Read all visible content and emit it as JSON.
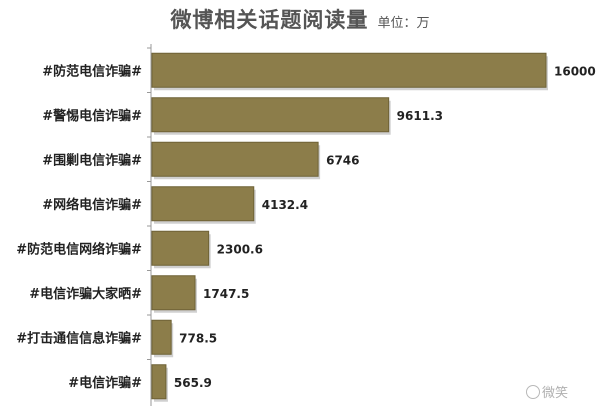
{
  "chart_data": {
    "type": "bar",
    "orientation": "horizontal",
    "title": "微博相关话题阅读量",
    "unit_label": "单位：万",
    "categories": [
      "#防范电信诈骗#",
      "#警惕电信诈骗#",
      "#围剿电信诈骗#",
      "#网络电信诈骗#",
      "#防范电信网络诈骗#",
      "#电信诈骗大家晒#",
      "#打击通信信息诈骗#",
      "#电信诈骗#"
    ],
    "values": [
      16000,
      9611.3,
      6746,
      4132.4,
      2300.6,
      1747.5,
      778.5,
      565.9
    ],
    "value_labels": [
      "16000",
      "9611.3",
      "6746",
      "4132.4",
      "2300.6",
      "1747.5",
      "778.5",
      "565.9"
    ],
    "xlim": [
      0,
      16000
    ],
    "grid": false,
    "legend": "none",
    "bar_color": "#8c7d4a",
    "bar_edge_color": "#6e6236"
  },
  "watermark": {
    "text": "微笑"
  }
}
